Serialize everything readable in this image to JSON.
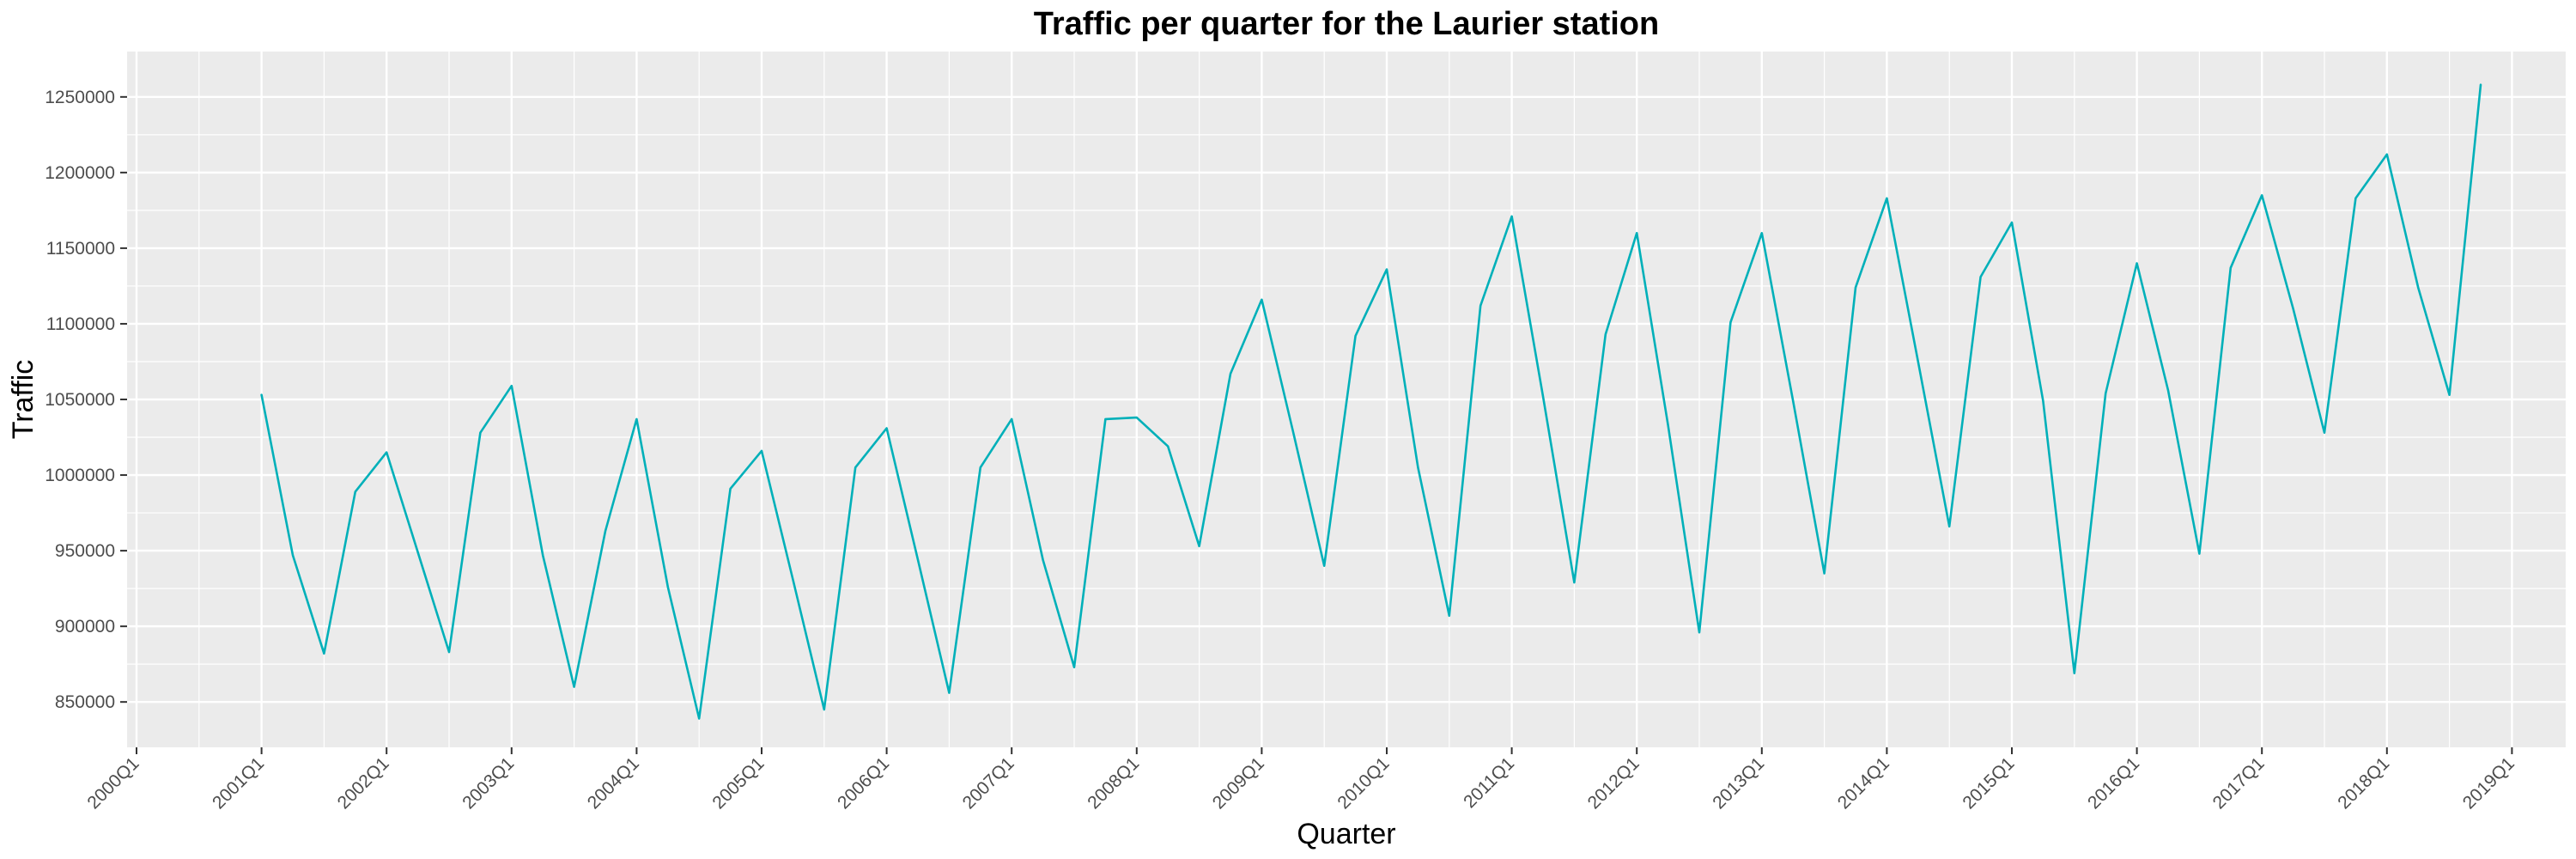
{
  "chart_data": {
    "type": "line",
    "title": "Traffic per quarter for the Laurier station",
    "xlabel": "Quarter",
    "ylabel": "Traffic",
    "x_tick_labels": [
      "2000Q1",
      "2001Q1",
      "2002Q1",
      "2003Q1",
      "2004Q1",
      "2005Q1",
      "2006Q1",
      "2007Q1",
      "2008Q1",
      "2009Q1",
      "2010Q1",
      "2011Q1",
      "2012Q1",
      "2013Q1",
      "2014Q1",
      "2015Q1",
      "2016Q1",
      "2017Q1",
      "2018Q1",
      "2019Q1"
    ],
    "y_ticks": [
      850000,
      900000,
      950000,
      1000000,
      1050000,
      1100000,
      1150000,
      1200000,
      1250000
    ],
    "y_tick_labels": [
      "850000",
      "900000",
      "950000",
      "1000000",
      "1050000",
      "1100000",
      "1150000",
      "1200000",
      "1250000"
    ],
    "ylim": [
      820000,
      1280000
    ],
    "x_start": "2001Q1",
    "x_end": "2018Q4",
    "line_color": "#00b0b9",
    "panel_color": "#ebebeb",
    "grid": true,
    "series": [
      {
        "values": [
          1053000,
          947000,
          882000,
          989000,
          1015000,
          949000,
          883000,
          1028000,
          1059000,
          947000,
          860000,
          963000,
          1037000,
          926000,
          839000,
          991000,
          1016000,
          931000,
          845000,
          1005000,
          1031000,
          944000,
          856000,
          1005000,
          1037000,
          944000,
          873000,
          1037000,
          1038000,
          1019000,
          953000,
          1067000,
          1116000,
          1029000,
          940000,
          1092000,
          1136000,
          1005000,
          907000,
          1112000,
          1171000,
          1052000,
          929000,
          1093000,
          1160000,
          1033000,
          896000,
          1101000,
          1160000,
          1049000,
          935000,
          1124000,
          1183000,
          1075000,
          966000,
          1131000,
          1167000,
          1049000,
          869000,
          1054000,
          1140000,
          1056000,
          948000,
          1137000,
          1185000,
          1110000,
          1028000,
          1183000,
          1212000,
          1124000,
          1053000,
          1258000
        ]
      }
    ]
  }
}
